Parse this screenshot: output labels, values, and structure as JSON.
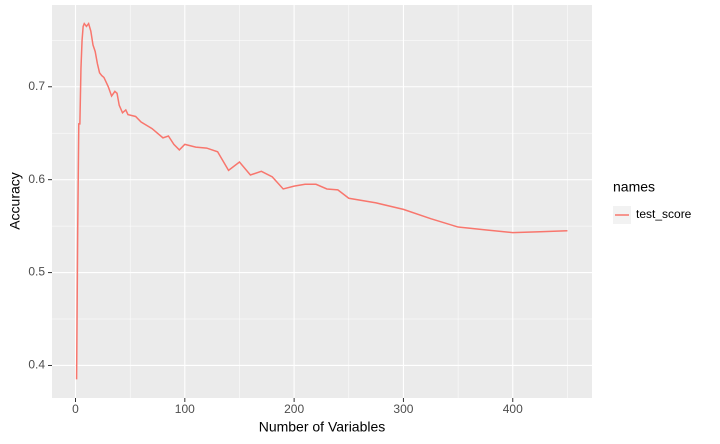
{
  "chart_data": {
    "type": "line",
    "x_label": "Number of Variables",
    "y_label": "Accuracy",
    "legend_title": "names",
    "legend": "right",
    "x": [
      1,
      2,
      3,
      4,
      5,
      6,
      7,
      8,
      10,
      12,
      14,
      16,
      18,
      20,
      22,
      24,
      26,
      28,
      30,
      33,
      36,
      38,
      40,
      43,
      46,
      48,
      55,
      60,
      70,
      80,
      85,
      90,
      95,
      100,
      110,
      120,
      130,
      140,
      150,
      160,
      170,
      180,
      190,
      200,
      210,
      220,
      230,
      240,
      250,
      275,
      300,
      325,
      350,
      375,
      400,
      425,
      450
    ],
    "series": [
      {
        "name": "test_score",
        "color": "#F8766D",
        "values": [
          0.385,
          0.545,
          0.66,
          0.66,
          0.72,
          0.75,
          0.765,
          0.768,
          0.765,
          0.768,
          0.76,
          0.745,
          0.738,
          0.725,
          0.715,
          0.712,
          0.71,
          0.705,
          0.7,
          0.69,
          0.695,
          0.693,
          0.68,
          0.672,
          0.675,
          0.67,
          0.668,
          0.662,
          0.655,
          0.645,
          0.647,
          0.638,
          0.632,
          0.638,
          0.635,
          0.634,
          0.63,
          0.61,
          0.619,
          0.605,
          0.609,
          0.603,
          0.59,
          0.593,
          0.595,
          0.595,
          0.59,
          0.589,
          0.58,
          0.575,
          0.568,
          0.558,
          0.549,
          0.546,
          0.543,
          0.544,
          0.545
        ]
      }
    ],
    "xlim": [
      -21.5,
      472.5
    ],
    "xticks": [
      0,
      100,
      200,
      300,
      400
    ],
    "ylim": [
      0.365,
      0.788
    ],
    "yticks": [
      0.4,
      0.5,
      0.6,
      0.7
    ],
    "grid": true
  }
}
